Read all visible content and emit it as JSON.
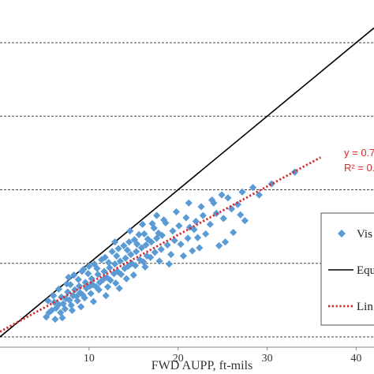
{
  "chart_data": {
    "type": "scatter",
    "title": "",
    "xlabel": "FWD AUPP, ft-mils",
    "ylabel": "",
    "xlim": [
      0,
      42
    ],
    "ylim": [
      -1.4,
      45.8
    ],
    "x_ticks": [
      "10",
      "20",
      "30",
      "40"
    ],
    "x_tick_values": [
      10,
      20,
      30,
      40
    ],
    "y_gridlines": [
      0,
      10,
      20,
      30,
      40
    ],
    "grid": "horizontal dashed",
    "legend_placement": "bottom-right, partially visible",
    "trendline_text": [
      "y = 0.7",
      "R² = 0."
    ],
    "colors": {
      "visual_points": "#5b9bd5",
      "equality_line": "#000000",
      "linear_fit": "#d9262b",
      "equation_text": "#d92b2b"
    },
    "series": [
      {
        "name": "Vis",
        "kind": "scatter",
        "marker": "diamond",
        "points": [
          [
            5.2,
            2.7
          ],
          [
            5.5,
            3.3
          ],
          [
            5.8,
            3.6
          ],
          [
            6.3,
            3.9
          ],
          [
            6.6,
            4.4
          ],
          [
            7.1,
            4.5
          ],
          [
            7.4,
            5.2
          ],
          [
            7.8,
            5.0
          ],
          [
            8.2,
            5.6
          ],
          [
            8.6,
            5.5
          ],
          [
            9.0,
            6.0
          ],
          [
            9.3,
            5.7
          ],
          [
            9.7,
            6.6
          ],
          [
            10.1,
            6.9
          ],
          [
            10.4,
            7.1
          ],
          [
            10.8,
            6.8
          ],
          [
            11.2,
            7.4
          ],
          [
            11.6,
            7.8
          ],
          [
            12.0,
            8.1
          ],
          [
            12.4,
            7.7
          ],
          [
            12.8,
            8.6
          ],
          [
            13.2,
            8.9
          ],
          [
            13.6,
            8.5
          ],
          [
            14.0,
            9.3
          ],
          [
            14.4,
            9.6
          ],
          [
            14.8,
            10.0
          ],
          [
            15.2,
            9.7
          ],
          [
            15.7,
            10.5
          ],
          [
            16.1,
            10.2
          ],
          [
            16.5,
            11.0
          ],
          [
            6.1,
            4.7
          ],
          [
            6.9,
            5.4
          ],
          [
            7.6,
            6.1
          ],
          [
            8.4,
            6.4
          ],
          [
            8.9,
            6.9
          ],
          [
            9.6,
            7.4
          ],
          [
            10.3,
            7.9
          ],
          [
            11.0,
            8.5
          ],
          [
            11.7,
            8.9
          ],
          [
            12.3,
            9.4
          ],
          [
            12.9,
            9.9
          ],
          [
            13.5,
            10.3
          ],
          [
            14.1,
            10.7
          ],
          [
            14.7,
            11.2
          ],
          [
            15.3,
            11.6
          ],
          [
            15.9,
            12.1
          ],
          [
            16.4,
            12.5
          ],
          [
            17.0,
            12.9
          ],
          [
            17.6,
            13.4
          ],
          [
            18.2,
            13.8
          ],
          [
            7.3,
            3.8
          ],
          [
            8.0,
            4.3
          ],
          [
            8.7,
            4.9
          ],
          [
            9.5,
            5.3
          ],
          [
            10.2,
            5.9
          ],
          [
            11.1,
            6.4
          ],
          [
            12.1,
            6.8
          ],
          [
            13.0,
            7.3
          ],
          [
            14.2,
            7.9
          ],
          [
            15.0,
            8.4
          ],
          [
            7.9,
            7.1
          ],
          [
            8.8,
            7.8
          ],
          [
            9.9,
            8.6
          ],
          [
            10.9,
            9.3
          ],
          [
            12.2,
            10.1
          ],
          [
            13.1,
            11.0
          ],
          [
            14.3,
            11.8
          ],
          [
            15.4,
            12.6
          ],
          [
            16.6,
            13.3
          ],
          [
            17.8,
            14.1
          ],
          [
            8.3,
            8.4
          ],
          [
            9.4,
            9.2
          ],
          [
            10.6,
            9.9
          ],
          [
            11.8,
            10.8
          ],
          [
            12.6,
            11.6
          ],
          [
            13.9,
            12.4
          ],
          [
            15.1,
            13.2
          ],
          [
            16.2,
            14.0
          ],
          [
            17.3,
            14.8
          ],
          [
            18.6,
            15.5
          ],
          [
            6.6,
            6.5
          ],
          [
            7.5,
            7.2
          ],
          [
            16.9,
            10.8
          ],
          [
            17.4,
            11.5
          ],
          [
            18.1,
            11.9
          ],
          [
            18.8,
            12.5
          ],
          [
            19.6,
            13.1
          ],
          [
            20.3,
            12.6
          ],
          [
            21.1,
            13.4
          ],
          [
            21.8,
            14.6
          ],
          [
            16.3,
            9.5
          ],
          [
            17.9,
            10.3
          ],
          [
            19.2,
            11.2
          ],
          [
            20.6,
            11.0
          ],
          [
            22.4,
            12.1
          ],
          [
            23.1,
            14.0
          ],
          [
            24.6,
            12.4
          ],
          [
            25.3,
            12.9
          ],
          [
            26.2,
            14.2
          ],
          [
            27.5,
            15.8
          ],
          [
            19.4,
            14.4
          ],
          [
            20.1,
            15.1
          ],
          [
            21.3,
            14.9
          ],
          [
            22.0,
            15.7
          ],
          [
            22.8,
            16.5
          ],
          [
            23.6,
            15.3
          ],
          [
            24.3,
            16.8
          ],
          [
            25.1,
            16.1
          ],
          [
            26.0,
            17.4
          ],
          [
            27.0,
            16.6
          ],
          [
            18.4,
            15.9
          ],
          [
            19.8,
            17.0
          ],
          [
            21.2,
            18.2
          ],
          [
            22.6,
            17.7
          ],
          [
            23.8,
            18.6
          ],
          [
            24.9,
            19.3
          ],
          [
            25.6,
            18.9
          ],
          [
            27.2,
            19.7
          ],
          [
            28.4,
            20.3
          ],
          [
            30.5,
            20.8
          ],
          [
            33.1,
            22.4
          ],
          [
            29.1,
            19.3
          ],
          [
            24.0,
            18.2
          ],
          [
            20.9,
            16.2
          ],
          [
            17.1,
            15.4
          ],
          [
            15.6,
            13.9
          ],
          [
            14.5,
            12.9
          ],
          [
            13.3,
            12.0
          ],
          [
            11.4,
            10.5
          ],
          [
            10.0,
            9.6
          ],
          [
            6.0,
            5.6
          ],
          [
            5.4,
            4.9
          ],
          [
            6.8,
            3.3
          ],
          [
            8.1,
            3.6
          ],
          [
            9.1,
            4.1
          ],
          [
            10.5,
            4.8
          ],
          [
            11.9,
            5.6
          ],
          [
            13.4,
            6.6
          ],
          [
            6.2,
            2.4
          ],
          [
            7.0,
            2.6
          ],
          [
            7.7,
            8.1
          ],
          [
            9.2,
            8.9
          ],
          [
            12.9,
            12.9
          ],
          [
            14.6,
            14.4
          ],
          [
            16.0,
            15.3
          ],
          [
            17.6,
            16.5
          ],
          [
            26.7,
            18.0
          ],
          [
            22.2,
            13.5
          ],
          [
            19.0,
            9.9
          ],
          [
            21.6,
            11.7
          ]
        ]
      },
      {
        "name": "Equ",
        "kind": "line",
        "points": [
          [
            0,
            0
          ],
          [
            42,
            42
          ]
        ]
      },
      {
        "name": "Lin",
        "kind": "dotted-line",
        "points": [
          [
            0,
            0.7
          ],
          [
            36,
            24.4
          ]
        ]
      }
    ]
  }
}
